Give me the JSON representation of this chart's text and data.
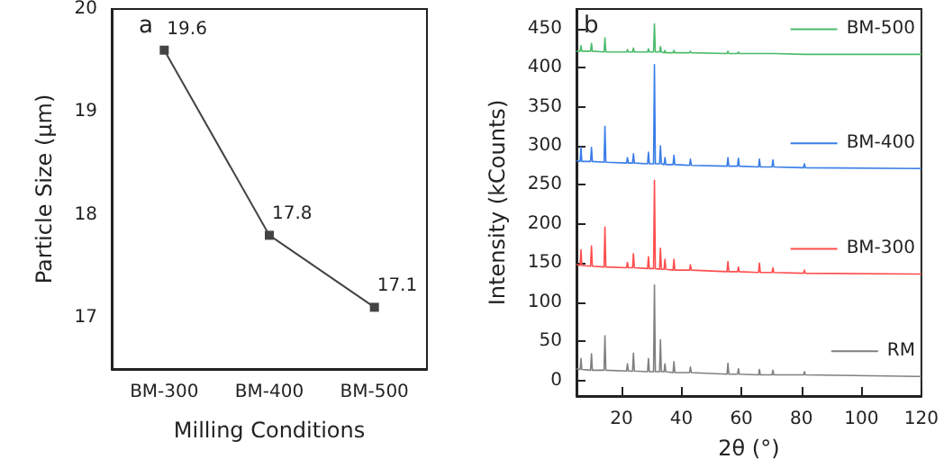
{
  "chart_data": [
    {
      "type": "line",
      "annotations": [
        "a"
      ],
      "xlabel": "Milling Conditions",
      "ylabel": "Particle Size (μm)",
      "categories": [
        "BM-300",
        "BM-400",
        "BM-500"
      ],
      "series": [
        {
          "color": "#444444",
          "values": [
            19.6,
            17.8,
            17.1
          ]
        }
      ],
      "ylim": [
        16.5,
        20
      ],
      "yticks": [
        17,
        18,
        19,
        20
      ],
      "marker": "square",
      "data_labels": true,
      "grid": false
    },
    {
      "type": "line",
      "annotations": [
        "b"
      ],
      "xlabel": "2θ (°)",
      "ylabel": "Intensity (kCounts)",
      "x": [
        5,
        6.2,
        6.5,
        6.8,
        9.7,
        10,
        10.3,
        14.2,
        14.5,
        14.8,
        21.7,
        22,
        22.3,
        23.7,
        24,
        24.3,
        28.7,
        29,
        29.3,
        30.7,
        31,
        31.3,
        32.7,
        33,
        33.3,
        34.2,
        34.5,
        34.8,
        37.2,
        37.5,
        37.8,
        42.7,
        43,
        43.3,
        55.2,
        55.5,
        55.8,
        58.7,
        59,
        59.3,
        65.7,
        66,
        66.3,
        70.2,
        70.5,
        70.8,
        80.7,
        81,
        81.3,
        120
      ],
      "series": [
        {
          "name": "BM-500",
          "color": "#4cbb6b",
          "values": [
            421,
            421,
            428,
            421,
            421,
            431,
            421,
            420,
            438,
            420,
            420,
            423,
            420,
            420,
            425,
            420,
            420,
            424,
            420,
            420,
            456,
            420,
            420,
            427,
            420,
            419,
            422,
            419,
            419,
            422,
            419,
            419,
            421,
            419,
            418,
            421,
            418,
            418,
            420,
            418,
            418,
            419,
            418,
            418,
            419,
            418,
            417,
            418,
            417,
            417
          ]
        },
        {
          "name": "BM-400",
          "color": "#3a7de8",
          "values": [
            281,
            280,
            298,
            280,
            280,
            298,
            280,
            279,
            325,
            279,
            278,
            285,
            278,
            278,
            290,
            278,
            277,
            292,
            277,
            277,
            404,
            277,
            277,
            300,
            277,
            276,
            285,
            276,
            276,
            288,
            276,
            275,
            283,
            275,
            274,
            285,
            274,
            274,
            284,
            274,
            273,
            283,
            273,
            273,
            282,
            273,
            272,
            277,
            272,
            271
          ]
        },
        {
          "name": "BM-300",
          "color": "#ff4d4d",
          "values": [
            148,
            147,
            167,
            147,
            146,
            172,
            146,
            145,
            196,
            145,
            144,
            151,
            144,
            144,
            162,
            144,
            143,
            158,
            143,
            143,
            256,
            143,
            142,
            169,
            142,
            142,
            155,
            142,
            141,
            155,
            141,
            141,
            148,
            141,
            139,
            152,
            139,
            139,
            145,
            139,
            138,
            150,
            138,
            138,
            144,
            138,
            137,
            141,
            137,
            136
          ]
        },
        {
          "name": "RM",
          "color": "#808080",
          "values": [
            15,
            14,
            28,
            14,
            13,
            34,
            13,
            13,
            57,
            13,
            12,
            21,
            12,
            12,
            35,
            12,
            11,
            28,
            11,
            11,
            122,
            11,
            11,
            52,
            11,
            11,
            21,
            11,
            10,
            24,
            10,
            10,
            17,
            10,
            8,
            22,
            8,
            8,
            15,
            8,
            7,
            14,
            7,
            7,
            13,
            7,
            7,
            11,
            7,
            5
          ]
        }
      ],
      "xlim": [
        5,
        120
      ],
      "xticks": [
        20,
        40,
        60,
        80,
        100,
        120
      ],
      "ylim": [
        -20,
        475
      ],
      "yticks": [
        0,
        50,
        100,
        150,
        200,
        250,
        300,
        350,
        400,
        450
      ],
      "marker": "none",
      "legend": "right",
      "grid": false
    }
  ]
}
